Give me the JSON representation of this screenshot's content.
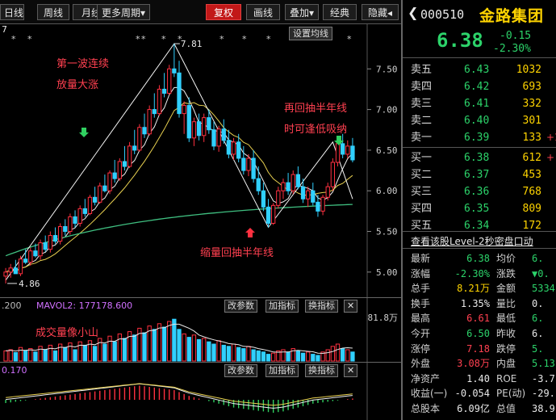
{
  "toolbar": {
    "items": [
      {
        "name": "daily-line-button",
        "label": "日线",
        "active": false
      },
      {
        "name": "weekly-line-button",
        "label": "周线",
        "active": false
      },
      {
        "name": "monthly-line-button",
        "label": "月线",
        "active": false
      },
      {
        "name": "more-periods-button",
        "label": "更多周期▾",
        "active": false
      },
      {
        "name": "restore-rights-button",
        "label": "复权",
        "active": true
      },
      {
        "name": "drawing-button",
        "label": "画线",
        "active": false
      },
      {
        "name": "overlay-button",
        "label": "叠加▾",
        "active": false
      },
      {
        "name": "classic-button",
        "label": "经典",
        "active": false
      },
      {
        "name": "hide-button",
        "label": "隐藏◂",
        "active": false
      }
    ]
  },
  "main_chart": {
    "settings_button": "设置均线",
    "top_left_marker": "7",
    "high_label": "7.81",
    "low_label": "4.86",
    "y_ticks": [
      "7.50",
      "7.00",
      "6.50",
      "6.00",
      "5.50",
      "5.00"
    ],
    "annotations": {
      "wave1_line1": "第一波连续",
      "wave1_line2": "放量大涨",
      "pullback_line1": "再回抽半年线",
      "pullback_line2": "时可逢低吸纳",
      "shrink": "缩量回抽半年线"
    }
  },
  "chart_data": {
    "type": "candlestick",
    "ylim": [
      4.75,
      7.95
    ],
    "ohlc": [
      [
        4.95,
        5.05,
        4.86,
        5.0
      ],
      [
        5.0,
        5.1,
        4.93,
        5.05
      ],
      [
        5.05,
        5.15,
        4.98,
        4.98
      ],
      [
        4.98,
        5.2,
        4.95,
        5.16
      ],
      [
        5.16,
        5.28,
        5.1,
        5.12
      ],
      [
        5.12,
        5.3,
        5.08,
        5.26
      ],
      [
        5.26,
        5.35,
        5.18,
        5.2
      ],
      [
        5.2,
        5.4,
        5.15,
        5.36
      ],
      [
        5.36,
        5.45,
        5.25,
        5.28
      ],
      [
        5.28,
        5.5,
        5.24,
        5.45
      ],
      [
        5.45,
        5.55,
        5.35,
        5.38
      ],
      [
        5.38,
        5.6,
        5.34,
        5.56
      ],
      [
        5.56,
        5.65,
        5.45,
        5.5
      ],
      [
        5.5,
        5.72,
        5.46,
        5.68
      ],
      [
        5.68,
        5.76,
        5.55,
        5.6
      ],
      [
        5.6,
        5.82,
        5.56,
        5.78
      ],
      [
        5.78,
        5.9,
        5.68,
        5.72
      ],
      [
        5.72,
        5.95,
        5.7,
        5.92
      ],
      [
        5.92,
        6.05,
        5.82,
        5.86
      ],
      [
        5.86,
        6.1,
        5.84,
        6.06
      ],
      [
        6.06,
        6.2,
        5.98,
        6.0
      ],
      [
        6.0,
        6.25,
        5.96,
        6.22
      ],
      [
        6.22,
        6.38,
        6.1,
        6.15
      ],
      [
        6.15,
        6.4,
        6.12,
        6.36
      ],
      [
        6.36,
        6.55,
        6.25,
        6.3
      ],
      [
        6.3,
        6.6,
        6.28,
        6.55
      ],
      [
        6.55,
        6.75,
        6.45,
        6.5
      ],
      [
        6.5,
        6.82,
        6.48,
        6.78
      ],
      [
        6.78,
        6.95,
        6.65,
        6.7
      ],
      [
        6.7,
        7.05,
        6.68,
        7.0
      ],
      [
        7.0,
        7.2,
        6.9,
        6.95
      ],
      [
        6.95,
        7.3,
        6.92,
        7.25
      ],
      [
        7.25,
        7.45,
        7.15,
        7.2
      ],
      [
        7.2,
        7.55,
        7.18,
        7.5
      ],
      [
        7.5,
        7.81,
        7.4,
        7.45
      ],
      [
        7.45,
        7.6,
        6.9,
        6.95
      ],
      [
        6.95,
        7.1,
        6.7,
        7.05
      ],
      [
        7.05,
        7.15,
        6.6,
        6.65
      ],
      [
        6.65,
        6.9,
        6.55,
        6.85
      ],
      [
        6.85,
        6.95,
        6.62,
        6.68
      ],
      [
        6.68,
        6.95,
        6.6,
        6.9
      ],
      [
        6.9,
        7.0,
        6.7,
        6.75
      ],
      [
        6.75,
        6.85,
        6.5,
        6.55
      ],
      [
        6.55,
        6.8,
        6.48,
        6.76
      ],
      [
        6.76,
        6.88,
        6.58,
        6.62
      ],
      [
        6.62,
        6.75,
        6.4,
        6.45
      ],
      [
        6.45,
        6.65,
        6.38,
        6.6
      ],
      [
        6.6,
        6.7,
        6.35,
        6.4
      ],
      [
        6.4,
        6.55,
        6.2,
        6.25
      ],
      [
        6.25,
        6.45,
        6.18,
        6.4
      ],
      [
        6.4,
        6.5,
        6.1,
        6.15
      ],
      [
        6.15,
        6.3,
        5.95,
        6.0
      ],
      [
        6.0,
        6.1,
        5.75,
        5.8
      ],
      [
        5.8,
        5.9,
        5.55,
        5.6
      ],
      [
        5.6,
        5.85,
        5.58,
        5.82
      ],
      [
        5.82,
        6.05,
        5.78,
        6.0
      ],
      [
        6.0,
        6.15,
        5.9,
        6.1
      ],
      [
        6.1,
        6.22,
        5.95,
        6.0
      ],
      [
        6.0,
        6.25,
        5.96,
        6.2
      ],
      [
        6.2,
        6.3,
        6.02,
        6.05
      ],
      [
        6.05,
        6.15,
        5.85,
        5.9
      ],
      [
        5.9,
        6.05,
        5.8,
        6.0
      ],
      [
        6.0,
        6.1,
        5.82,
        5.86
      ],
      [
        5.86,
        5.95,
        5.68,
        5.75
      ],
      [
        5.75,
        5.95,
        5.7,
        5.92
      ],
      [
        5.92,
        6.1,
        5.88,
        6.05
      ],
      [
        6.05,
        6.4,
        6.0,
        6.35
      ],
      [
        6.35,
        6.62,
        6.3,
        6.58
      ],
      [
        6.58,
        6.7,
        6.4,
        6.45
      ],
      [
        6.45,
        6.62,
        6.4,
        6.55
      ],
      [
        6.55,
        6.65,
        6.35,
        6.38
      ]
    ],
    "volume": {
      "label": "MAVOL2: 177178.600",
      "left_label": ".200",
      "axis_max_label": "81.8万",
      "annotation": "成交量像小山",
      "values": [
        18,
        20,
        15,
        24,
        18,
        22,
        16,
        26,
        20,
        28,
        18,
        30,
        24,
        32,
        20,
        34,
        28,
        36,
        26,
        40,
        30,
        44,
        34,
        48,
        40,
        52,
        46,
        58,
        50,
        62,
        56,
        66,
        60,
        70,
        74,
        56,
        48,
        42,
        46,
        38,
        40,
        34,
        30,
        36,
        28,
        26,
        30,
        24,
        22,
        26,
        20,
        18,
        16,
        12,
        14,
        18,
        20,
        16,
        22,
        18,
        14,
        16,
        12,
        10,
        16,
        20,
        26,
        30,
        22,
        20,
        16
      ]
    },
    "macd": {
      "left_label": "0.170",
      "values": [
        -0.05,
        -0.04,
        -0.03,
        -0.02,
        -0.01,
        0.0,
        0.01,
        0.02,
        0.03,
        0.04,
        0.05,
        0.06,
        0.07,
        0.08,
        0.09,
        0.1,
        0.11,
        0.12,
        0.13,
        0.14,
        0.15,
        0.16,
        0.17,
        0.18,
        0.19,
        0.2,
        0.21,
        0.22,
        0.21,
        0.2,
        0.19,
        0.18,
        0.17,
        0.16,
        0.15,
        0.12,
        0.09,
        0.06,
        0.04,
        0.02,
        0.0,
        -0.02,
        -0.04,
        -0.06,
        -0.08,
        -0.1,
        -0.12,
        -0.13,
        -0.14,
        -0.15,
        -0.16,
        -0.17,
        -0.18,
        -0.19,
        -0.2,
        -0.19,
        -0.18,
        -0.16,
        -0.14,
        -0.12,
        -0.1,
        -0.08,
        -0.06,
        -0.05,
        -0.04,
        -0.03,
        -0.02,
        -0.01,
        0.0,
        0.01,
        0.02
      ]
    }
  },
  "panels": {
    "change_params": "改参数",
    "add_indicator": "加指标",
    "switch_indicator": "换指标",
    "close": "✕"
  },
  "quote": {
    "code": "000510",
    "name": "金路集团",
    "price": "6.38",
    "change": "-0.15",
    "change_pct": "-2.30%",
    "asks": [
      {
        "label": "卖五",
        "price": "6.43",
        "vol": "1032",
        "extra": ""
      },
      {
        "label": "卖四",
        "price": "6.42",
        "vol": "693",
        "extra": ""
      },
      {
        "label": "卖三",
        "price": "6.41",
        "vol": "332",
        "extra": ""
      },
      {
        "label": "卖二",
        "price": "6.40",
        "vol": "301",
        "extra": ""
      },
      {
        "label": "卖一",
        "price": "6.39",
        "vol": "133",
        "extra": "+1"
      }
    ],
    "bids": [
      {
        "label": "买一",
        "price": "6.38",
        "vol": "612",
        "extra": "+"
      },
      {
        "label": "买二",
        "price": "6.37",
        "vol": "453",
        "extra": ""
      },
      {
        "label": "买三",
        "price": "6.36",
        "vol": "768",
        "extra": ""
      },
      {
        "label": "买四",
        "price": "6.35",
        "vol": "809",
        "extra": ""
      },
      {
        "label": "买五",
        "price": "6.34",
        "vol": "172",
        "extra": ""
      }
    ],
    "level2_link": "查看该股Level-2秒密盘口动",
    "stats": [
      {
        "l1": "最新",
        "v1": "6.38",
        "c1": "green",
        "l2": "均价",
        "v2": "6.",
        "c2": "green"
      },
      {
        "l1": "涨幅",
        "v1": "-2.30%",
        "c1": "green",
        "l2": "涨跌",
        "v2": "▼0.",
        "c2": "green"
      },
      {
        "l1": "总手",
        "v1": "8.21万",
        "c1": "yellow",
        "l2": "金额",
        "v2": "5334",
        "c2": "green"
      },
      {
        "l1": "换手",
        "v1": "1.35%",
        "c1": "white",
        "l2": "量比",
        "v2": "0.",
        "c2": "white"
      },
      {
        "l1": "最高",
        "v1": "6.61",
        "c1": "red",
        "l2": "最低",
        "v2": "6.",
        "c2": "green"
      },
      {
        "l1": "今开",
        "v1": "6.50",
        "c1": "green",
        "l2": "昨收",
        "v2": "6.",
        "c2": "white"
      },
      {
        "l1": "涨停",
        "v1": "7.18",
        "c1": "red",
        "l2": "跌停",
        "v2": "5.",
        "c2": "green"
      },
      {
        "l1": "外盘",
        "v1": "3.08万",
        "c1": "red",
        "l2": "内盘",
        "v2": "5.13",
        "c2": "green"
      },
      {
        "l1": "净资产",
        "v1": "1.40",
        "c1": "white",
        "l2": "ROE",
        "v2": "-3.7",
        "c2": "white"
      },
      {
        "l1": "收益(一)",
        "v1": "-0.054",
        "c1": "white",
        "l2": "PE(动)",
        "v2": "-29.",
        "c2": "white"
      },
      {
        "l1": "总股本",
        "v1": "6.09亿",
        "c1": "white",
        "l2": "总值",
        "v2": "38.9",
        "c2": "white"
      }
    ]
  }
}
